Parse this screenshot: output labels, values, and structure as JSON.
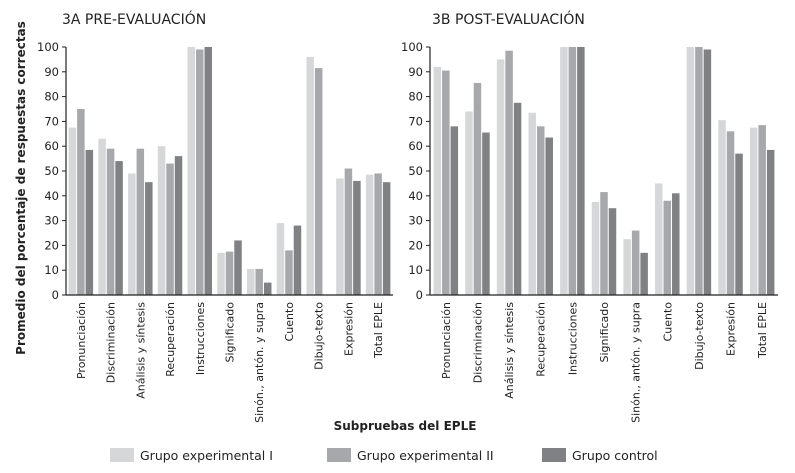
{
  "y_axis_label": "Promedio del porcentaje de respuestas correctas",
  "x_axis_label": "Subpruebas del EPLE",
  "legend": [
    {
      "name": "Grupo experimental I",
      "color": "#d6d7d9"
    },
    {
      "name": "Grupo experimental II",
      "color": "#a7a8ab"
    },
    {
      "name": "Grupo control",
      "color": "#808184"
    }
  ],
  "chart_data": [
    {
      "type": "bar",
      "title": "3A PRE-EVALUACIÓN",
      "ylim": [
        0,
        100
      ],
      "yticks": [
        0,
        10,
        20,
        30,
        40,
        50,
        60,
        70,
        80,
        90,
        100
      ],
      "grid": false,
      "legend_placement": "bottom",
      "categories": [
        "Pronunciación",
        "Discriminación",
        "Análisis y síntesis",
        "Recuperación",
        "Instrucciones",
        "Significado",
        "Sinón., antón. y supra",
        "Cuento",
        "Dibujo-texto",
        "Expresión",
        "Total EPLE"
      ],
      "series": [
        {
          "name": "Grupo experimental I",
          "values": [
            67.5,
            63,
            49,
            60,
            100,
            17,
            10.5,
            29,
            96,
            47,
            48.5
          ]
        },
        {
          "name": "Grupo experimental II",
          "values": [
            75,
            59,
            59,
            53,
            99,
            17.5,
            10.5,
            18,
            91.5,
            51,
            49
          ]
        },
        {
          "name": "Grupo control",
          "values": [
            58.5,
            54,
            45.5,
            56,
            100,
            22,
            5,
            28,
            null,
            46,
            45.5
          ]
        }
      ]
    },
    {
      "type": "bar",
      "title": "3B POST-EVALUACIÓN",
      "ylim": [
        0,
        100
      ],
      "yticks": [
        0,
        10,
        20,
        30,
        40,
        50,
        60,
        70,
        80,
        90,
        100
      ],
      "grid": false,
      "legend_placement": "bottom",
      "categories": [
        "Pronunciación",
        "Discriminación",
        "Análisis y síntesis",
        "Recuperación",
        "Instrucciones",
        "Significado",
        "Sinón., antón. y supra",
        "Cuento",
        "Dibujo-texto",
        "Expresión",
        "Total EPLE"
      ],
      "series": [
        {
          "name": "Grupo experimental I",
          "values": [
            92,
            74,
            95,
            73.5,
            100,
            37.5,
            22.5,
            45,
            100,
            70.5,
            67.5
          ]
        },
        {
          "name": "Grupo experimental II",
          "values": [
            90.5,
            85.5,
            98.5,
            68,
            100,
            41.5,
            26,
            38,
            100,
            66,
            68.5
          ]
        },
        {
          "name": "Grupo control",
          "values": [
            68,
            65.5,
            77.5,
            63.5,
            100,
            35,
            17,
            41,
            99,
            57,
            58.5
          ]
        }
      ]
    }
  ]
}
